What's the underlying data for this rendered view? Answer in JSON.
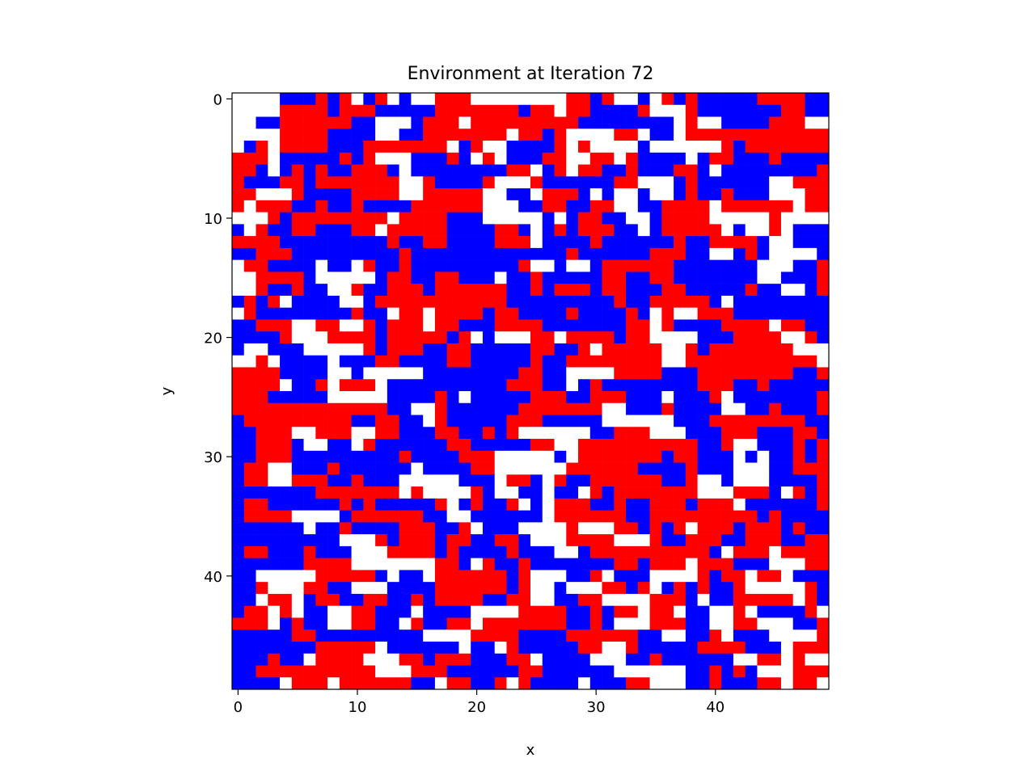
{
  "chart_data": {
    "type": "heatmap",
    "title": "Environment at Iteration 72",
    "xlabel": "x",
    "ylabel": "y",
    "grid_size": [
      50,
      50
    ],
    "xlim": [
      -0.5,
      49.5
    ],
    "ylim": [
      49.5,
      -0.5
    ],
    "y_axis_inverted": true,
    "x_ticks": [
      0,
      10,
      20,
      30,
      40
    ],
    "y_ticks": [
      0,
      10,
      20,
      30,
      40
    ],
    "x_tick_labels": [
      "0",
      "10",
      "20",
      "30",
      "40"
    ],
    "y_tick_labels": [
      "0",
      "10",
      "20",
      "30",
      "40"
    ],
    "cell_states": [
      {
        "value": 0,
        "color": "#ffffff",
        "meaning": "empty"
      },
      {
        "value": 1,
        "color": "#ff0000"
      },
      {
        "value": 2,
        "color": "#0000ff"
      }
    ],
    "approx_fraction": {
      "empty": 0.18,
      "red": 0.42,
      "blue": 0.4
    },
    "grid_values_note": "Individual cell values are too numerous to transcribe; the grid is a randomized mix of red, blue and empty cells at the approximate fractions above.",
    "grid": []
  },
  "colors": {
    "empty": "#ffffff",
    "red": "#ff0000",
    "blue": "#0000ff",
    "axis": "#000000"
  }
}
